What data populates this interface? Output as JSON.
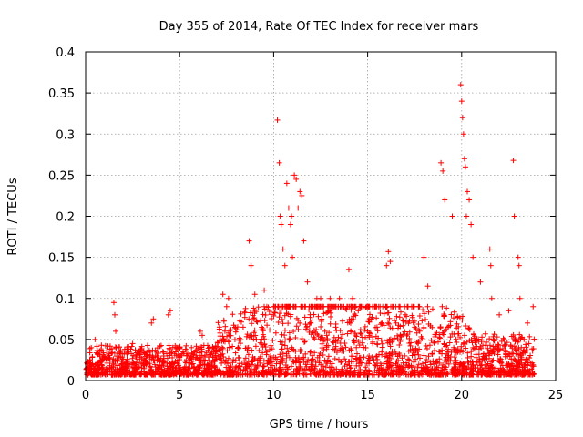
{
  "chart_data": {
    "type": "scatter",
    "title": "Day 355 of 2014, Rate Of TEC Index for receiver mars",
    "xlabel": "GPS time / hours",
    "ylabel": "ROTI / TECUs",
    "xlim": [
      0,
      25
    ],
    "ylim": [
      0,
      0.4
    ],
    "xticks": [
      0,
      5,
      10,
      15,
      20,
      25
    ],
    "xtick_labels": [
      "0",
      "5",
      "10",
      "15",
      "20",
      "25"
    ],
    "yticks": [
      0,
      0.05,
      0.1,
      0.15,
      0.2,
      0.25,
      0.3,
      0.35,
      0.4
    ],
    "ytick_labels": [
      "0",
      "0.05",
      "0.1",
      "0.15",
      "0.2",
      "0.25",
      "0.3",
      "0.35",
      "0.4"
    ],
    "grid": true,
    "marker": "plus",
    "color": "#ff0000",
    "series": [
      {
        "name": "ROTI",
        "x": [
          0.1,
          0.3,
          0.5,
          1.5,
          1.55,
          1.6,
          2.5,
          3.5,
          3.6,
          4.4,
          4.5,
          5.0,
          6.1,
          6.2,
          7.3,
          7.5,
          7.6,
          8.7,
          8.8,
          9.0,
          9.5,
          10.2,
          10.3,
          10.35,
          10.4,
          10.5,
          10.6,
          10.7,
          10.8,
          10.9,
          10.95,
          11.0,
          11.1,
          11.2,
          11.3,
          11.4,
          11.5,
          11.6,
          11.8,
          12.0,
          12.3,
          12.5,
          13.0,
          13.5,
          14.0,
          14.2,
          14.3,
          14.5,
          15.0,
          15.5,
          16.0,
          16.1,
          16.2,
          16.5,
          17.0,
          17.5,
          18.0,
          18.2,
          18.9,
          19.0,
          19.1,
          19.5,
          19.95,
          20.0,
          20.05,
          20.1,
          20.15,
          20.2,
          20.25,
          20.3,
          20.4,
          20.5,
          20.6,
          21.0,
          21.5,
          21.55,
          21.6,
          22.0,
          22.5,
          22.75,
          22.8,
          23.0,
          23.05,
          23.1,
          23.5,
          23.8
        ],
        "y": [
          0.02,
          0.04,
          0.05,
          0.095,
          0.08,
          0.06,
          0.045,
          0.07,
          0.075,
          0.08,
          0.085,
          0.04,
          0.06,
          0.055,
          0.105,
          0.09,
          0.1,
          0.17,
          0.14,
          0.105,
          0.11,
          0.317,
          0.265,
          0.2,
          0.19,
          0.16,
          0.14,
          0.24,
          0.21,
          0.19,
          0.2,
          0.15,
          0.25,
          0.245,
          0.21,
          0.23,
          0.225,
          0.17,
          0.12,
          0.09,
          0.1,
          0.1,
          0.1,
          0.1,
          0.135,
          0.1,
          0.09,
          0.085,
          0.09,
          0.065,
          0.14,
          0.157,
          0.145,
          0.07,
          0.08,
          0.065,
          0.15,
          0.115,
          0.265,
          0.255,
          0.22,
          0.2,
          0.36,
          0.34,
          0.32,
          0.3,
          0.27,
          0.26,
          0.2,
          0.23,
          0.22,
          0.19,
          0.15,
          0.12,
          0.16,
          0.14,
          0.1,
          0.08,
          0.085,
          0.268,
          0.2,
          0.15,
          0.14,
          0.1,
          0.07,
          0.09
        ]
      }
    ]
  }
}
